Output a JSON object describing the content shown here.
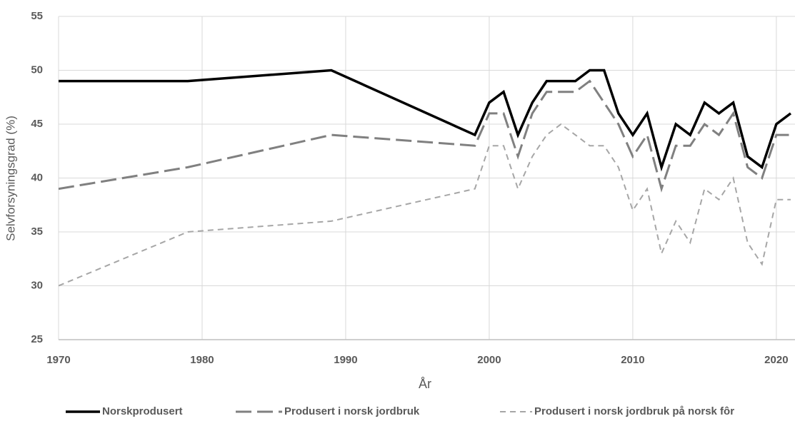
{
  "chart_data": {
    "type": "line",
    "xlabel": "År",
    "ylabel": "Selvforsyningsgrad (%)",
    "x": [
      1970,
      1979,
      1989,
      1999,
      2000,
      2001,
      2002,
      2003,
      2004,
      2005,
      2006,
      2007,
      2008,
      2009,
      2010,
      2011,
      2012,
      2013,
      2014,
      2015,
      2016,
      2017,
      2018,
      2019,
      2020,
      2021
    ],
    "series": [
      {
        "name": "Norskprodusert",
        "color": "#000000",
        "dash": "solid",
        "values": [
          49,
          49,
          50,
          44,
          47,
          48,
          44,
          47,
          49,
          49,
          49,
          50,
          50,
          46,
          44,
          46,
          41,
          45,
          44,
          47,
          46,
          47,
          42,
          41,
          45,
          46
        ]
      },
      {
        "name": "Produsert i norsk jordbruk",
        "color": "#808080",
        "dash": "long",
        "values": [
          39,
          41,
          44,
          43,
          46,
          46,
          42,
          46,
          48,
          48,
          48,
          49,
          47,
          45,
          42,
          44,
          39,
          43,
          43,
          45,
          44,
          46,
          41,
          40,
          44,
          44
        ]
      },
      {
        "name": "Produsert i norsk jordbruk på norsk fôr",
        "color": "#a6a6a6",
        "dash": "short",
        "values": [
          30,
          35,
          36,
          39,
          43,
          43,
          39,
          42,
          44,
          45,
          44,
          43,
          43,
          41,
          37,
          39,
          33,
          36,
          34,
          39,
          38,
          40,
          34,
          32,
          38,
          38
        ]
      }
    ],
    "xlim": [
      1970,
      2021.3
    ],
    "xticks": [
      1970,
      1980,
      1990,
      2000,
      2010,
      2020
    ],
    "ylim": [
      25,
      55
    ],
    "yticks": [
      25,
      30,
      35,
      40,
      45,
      50,
      55
    ],
    "grid": true,
    "legend": "bottom"
  }
}
